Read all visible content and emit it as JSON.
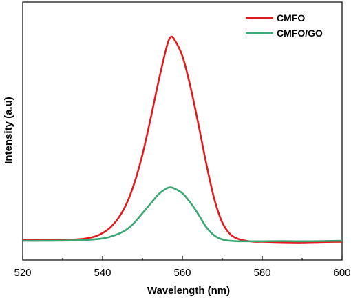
{
  "chart_data": {
    "type": "line",
    "xlabel": "Wavelength (nm)",
    "ylabel": "Intensity (a.u)",
    "xlim": [
      520,
      600
    ],
    "ylim": [
      0,
      1.1
    ],
    "x_ticks": [
      520,
      540,
      560,
      580,
      600
    ],
    "y_tick_labels": false,
    "legend_position": "top-right",
    "grid": false,
    "series": [
      {
        "name": "CMFO",
        "color": "#e31a1c",
        "x": [
          520,
          525,
          530,
          535,
          538,
          540,
          542,
          544,
          546,
          548,
          550,
          552,
          554,
          556,
          557,
          558,
          560,
          562,
          564,
          566,
          568,
          570,
          572,
          574,
          576,
          578,
          580,
          585,
          590,
          595,
          600
        ],
        "y": [
          0.085,
          0.085,
          0.086,
          0.09,
          0.1,
          0.115,
          0.14,
          0.18,
          0.24,
          0.33,
          0.45,
          0.6,
          0.76,
          0.905,
          0.95,
          0.94,
          0.87,
          0.74,
          0.58,
          0.41,
          0.26,
          0.16,
          0.11,
          0.09,
          0.082,
          0.078,
          0.078,
          0.076,
          0.075,
          0.077,
          0.078
        ]
      },
      {
        "name": "CMFO/GO",
        "color": "#3aa874",
        "x": [
          520,
          525,
          530,
          535,
          540,
          542,
          544,
          546,
          548,
          550,
          552,
          554,
          556,
          557,
          558,
          560,
          562,
          564,
          566,
          568,
          570,
          572,
          574,
          576,
          580,
          585,
          590,
          595,
          600
        ],
        "y": [
          0.082,
          0.082,
          0.083,
          0.085,
          0.092,
          0.1,
          0.112,
          0.13,
          0.16,
          0.2,
          0.24,
          0.28,
          0.305,
          0.31,
          0.305,
          0.285,
          0.245,
          0.195,
          0.14,
          0.105,
          0.088,
          0.082,
          0.08,
          0.08,
          0.08,
          0.081,
          0.08,
          0.081,
          0.082
        ]
      }
    ]
  }
}
